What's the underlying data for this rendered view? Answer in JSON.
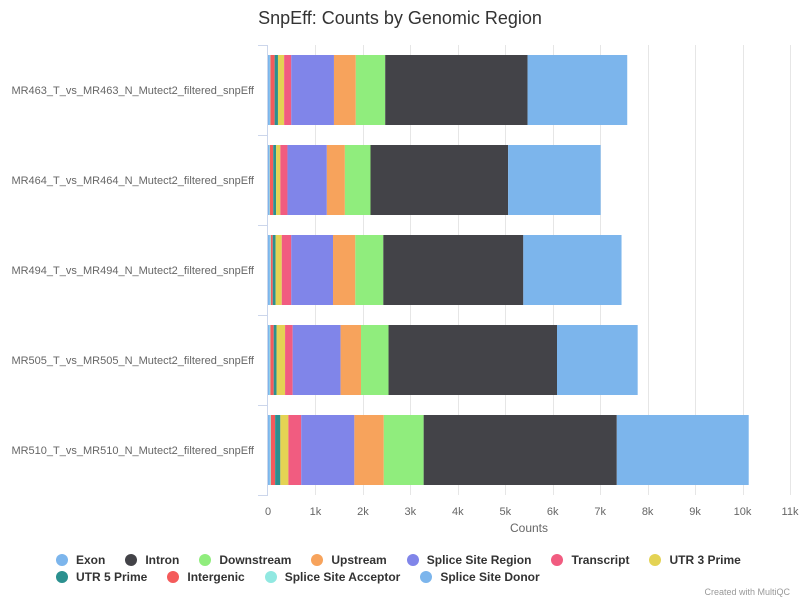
{
  "chart_data": {
    "type": "bar",
    "orientation": "horizontal",
    "stacked": true,
    "title": "SnpEff: Counts by Genomic Region",
    "xlabel": "Counts",
    "xlim": [
      0,
      11000
    ],
    "xticks": [
      0,
      1000,
      2000,
      3000,
      4000,
      5000,
      6000,
      7000,
      8000,
      9000,
      10000,
      11000
    ],
    "xtick_labels": [
      "0",
      "1k",
      "2k",
      "3k",
      "4k",
      "5k",
      "6k",
      "7k",
      "8k",
      "9k",
      "10k",
      "11k"
    ],
    "grid": true,
    "legend_position": "bottom",
    "categories": [
      "MR463_T_vs_MR463_N_Mutect2_filtered_snpEff",
      "MR464_T_vs_MR464_N_Mutect2_filtered_snpEff",
      "MR494_T_vs_MR494_N_Mutect2_filtered_snpEff",
      "MR505_T_vs_MR505_N_Mutect2_filtered_snpEff",
      "MR510_T_vs_MR510_N_Mutect2_filtered_snpEff"
    ],
    "stack_order": [
      "Splice Site Donor",
      "Splice Site Acceptor",
      "Intergenic",
      "UTR 5 Prime",
      "UTR 3 Prime",
      "Transcript",
      "Splice Site Region",
      "Upstream",
      "Downstream",
      "Intron",
      "Exon"
    ],
    "series": [
      {
        "name": "Exon",
        "color": "#7cb5ec",
        "values": [
          2100,
          1950,
          2070,
          1700,
          2780
        ]
      },
      {
        "name": "Intron",
        "color": "#434348",
        "values": [
          3000,
          2900,
          2950,
          3550,
          4070
        ]
      },
      {
        "name": "Downstream",
        "color": "#90ed7d",
        "values": [
          620,
          540,
          590,
          580,
          840
        ]
      },
      {
        "name": "Upstream",
        "color": "#f7a35c",
        "values": [
          460,
          380,
          470,
          430,
          620
        ]
      },
      {
        "name": "Splice Site Region",
        "color": "#8085e9",
        "values": [
          900,
          830,
          880,
          1010,
          1120
        ]
      },
      {
        "name": "Transcript",
        "color": "#f15c80",
        "values": [
          150,
          150,
          200,
          160,
          270
        ]
      },
      {
        "name": "UTR 3 Prime",
        "color": "#e4d354",
        "values": [
          130,
          90,
          130,
          180,
          170
        ]
      },
      {
        "name": "UTR 5 Prime",
        "color": "#2b908f",
        "values": [
          70,
          60,
          60,
          60,
          110
        ]
      },
      {
        "name": "Intergenic",
        "color": "#f45b5b",
        "values": [
          90,
          70,
          40,
          70,
          90
        ]
      },
      {
        "name": "Splice Site Acceptor",
        "color": "#91e8e1",
        "values": [
          10,
          10,
          20,
          15,
          20
        ]
      },
      {
        "name": "Splice Site Donor",
        "color": "#7cb5ec",
        "values": [
          40,
          30,
          40,
          35,
          40
        ]
      }
    ],
    "legend_rows": [
      [
        "Exon",
        "Intron",
        "Downstream",
        "Upstream",
        "Splice Site Region",
        "Transcript",
        "UTR 3 Prime"
      ],
      [
        "UTR 5 Prime",
        "Intergenic",
        "Splice Site Acceptor",
        "Splice Site Donor"
      ]
    ]
  },
  "credit": "Created with MultiQC"
}
